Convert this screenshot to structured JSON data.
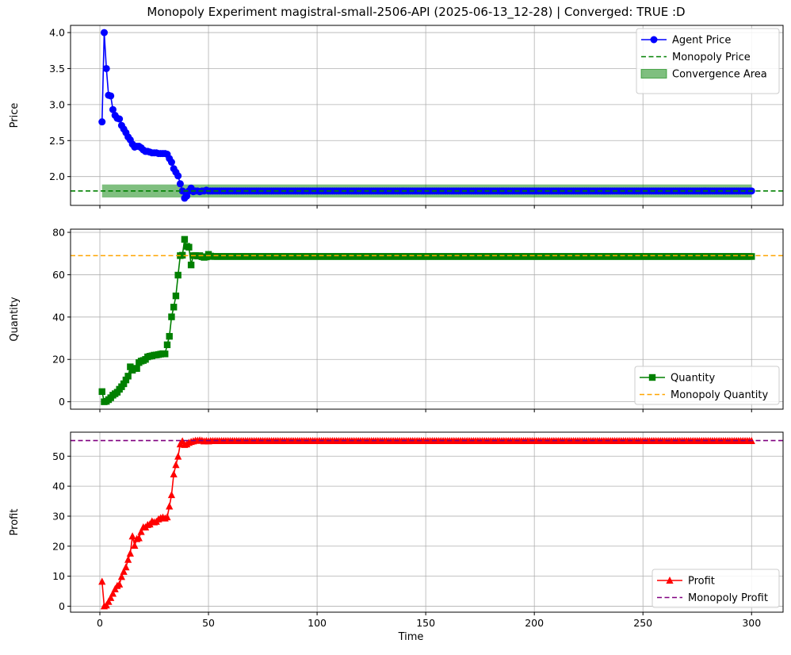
{
  "figure": {
    "title": "Monopoly Experiment magistral-small-2506-API (2025-06-13_12-28) | Converged: TRUE :D"
  },
  "chart_data": [
    {
      "type": "line",
      "id": "price",
      "ylabel": "Price",
      "xlabel": "",
      "xlim": [
        -13.5,
        314.5
      ],
      "ylim": [
        1.6,
        4.1
      ],
      "xticks": [
        0,
        50,
        100,
        150,
        200,
        250,
        300
      ],
      "yticks": [
        2.0,
        2.5,
        3.0,
        3.5,
        4.0
      ],
      "ytick_labels": [
        "2.0",
        "2.5",
        "3.0",
        "3.5",
        "4.0"
      ],
      "grid": true,
      "legend_position": "top-right",
      "series": [
        {
          "name": "Agent Price",
          "color": "#0000ff",
          "marker": "circle",
          "x_start": 1,
          "values": [
            2.76,
            4.0,
            3.5,
            3.13,
            3.12,
            2.93,
            2.85,
            2.81,
            2.8,
            2.71,
            2.66,
            2.61,
            2.55,
            2.51,
            2.45,
            2.41,
            2.42,
            2.42,
            2.4,
            2.37,
            2.35,
            2.35,
            2.34,
            2.33,
            2.33,
            2.33,
            2.32,
            2.32,
            2.32,
            2.32,
            2.31,
            2.25,
            2.2,
            2.11,
            2.06,
            2.01,
            1.9,
            1.8,
            1.7,
            1.73,
            1.8,
            1.84,
            1.79,
            1.8,
            1.8,
            1.79,
            1.8,
            1.8,
            1.81,
            1.8,
            1.8,
            1.8,
            1.8,
            1.8,
            1.8,
            1.8,
            1.8,
            1.8,
            1.8,
            1.8
          ],
          "tail_value": 1.8,
          "x_end": 300
        }
      ],
      "reference_line": {
        "name": "Monopoly Price",
        "value": 1.8,
        "color": "#008000",
        "style": "dashed"
      },
      "band": {
        "name": "Convergence Area",
        "x": [
          1,
          300
        ],
        "y": [
          1.71,
          1.89
        ],
        "color": "#008000"
      }
    },
    {
      "type": "line",
      "id": "quantity",
      "ylabel": "Quantity",
      "xlabel": "",
      "xlim": [
        -13.5,
        314.5
      ],
      "ylim": [
        -3.5,
        81.5
      ],
      "xticks": [
        0,
        50,
        100,
        150,
        200,
        250,
        300
      ],
      "yticks": [
        0,
        20,
        40,
        60,
        80
      ],
      "ytick_labels": [
        "0",
        "20",
        "40",
        "60",
        "80"
      ],
      "grid": true,
      "legend_position": "bottom-right",
      "series": [
        {
          "name": "Quantity",
          "color": "#008000",
          "marker": "square",
          "x_start": 1,
          "values": [
            4.8,
            0.0,
            0.2,
            1.0,
            1.9,
            3.1,
            3.8,
            4.5,
            5.9,
            7.1,
            8.5,
            10.3,
            12.1,
            16.5,
            14.9,
            15.8,
            15.7,
            18.5,
            19.2,
            19.5,
            20.0,
            21.2,
            21.5,
            21.7,
            22.0,
            22.1,
            22.3,
            22.5,
            22.7,
            22.6,
            26.9,
            30.9,
            40.1,
            44.7,
            50.0,
            59.8,
            69.0,
            69.2,
            76.7,
            73.4,
            73.0,
            64.6,
            69.0,
            69.0,
            68.8,
            69.0,
            68.5,
            68.2,
            68.4,
            69.6,
            68.8
          ],
          "tail_value": 68.6,
          "x_end": 300
        }
      ],
      "reference_line": {
        "name": "Monopoly Quantity",
        "value": 69.0,
        "color": "#ffa500",
        "style": "dashed"
      }
    },
    {
      "type": "line",
      "id": "profit",
      "ylabel": "Profit",
      "xlabel": "Time",
      "xlim": [
        -13.5,
        314.5
      ],
      "ylim": [
        -2,
        58
      ],
      "xticks": [
        0,
        50,
        100,
        150,
        200,
        250,
        300
      ],
      "xtick_labels": [
        "0",
        "50",
        "100",
        "150",
        "200",
        "250",
        "300"
      ],
      "yticks": [
        0,
        10,
        20,
        30,
        40,
        50
      ],
      "ytick_labels": [
        "0",
        "10",
        "20",
        "30",
        "40",
        "50"
      ],
      "grid": true,
      "legend_position": "bottom-right",
      "series": [
        {
          "name": "Profit",
          "color": "#ff0000",
          "marker": "triangle",
          "x_start": 1,
          "values": [
            8.2,
            0.0,
            0.3,
            1.5,
            2.8,
            4.2,
            5.7,
            6.8,
            7.3,
            9.8,
            11.5,
            13.0,
            15.5,
            17.6,
            23.3,
            20.2,
            22.4,
            22.7,
            24.8,
            26.3,
            26.3,
            27.1,
            27.3,
            28.3,
            28.0,
            28.2,
            29.0,
            29.4,
            29.6,
            29.3,
            29.7,
            33.3,
            37.1,
            44.0,
            47.1,
            49.9,
            54.0,
            55.0,
            53.8,
            54.0,
            54.5,
            54.8,
            55.0,
            55.2,
            55.2,
            55.3,
            55.2,
            55.0,
            55.1,
            55.0,
            55.1
          ],
          "tail_value": 55.1,
          "x_end": 300
        }
      ],
      "reference_line": {
        "name": "Monopoly Profit",
        "value": 55.2,
        "color": "#800080",
        "style": "dashed"
      }
    }
  ]
}
